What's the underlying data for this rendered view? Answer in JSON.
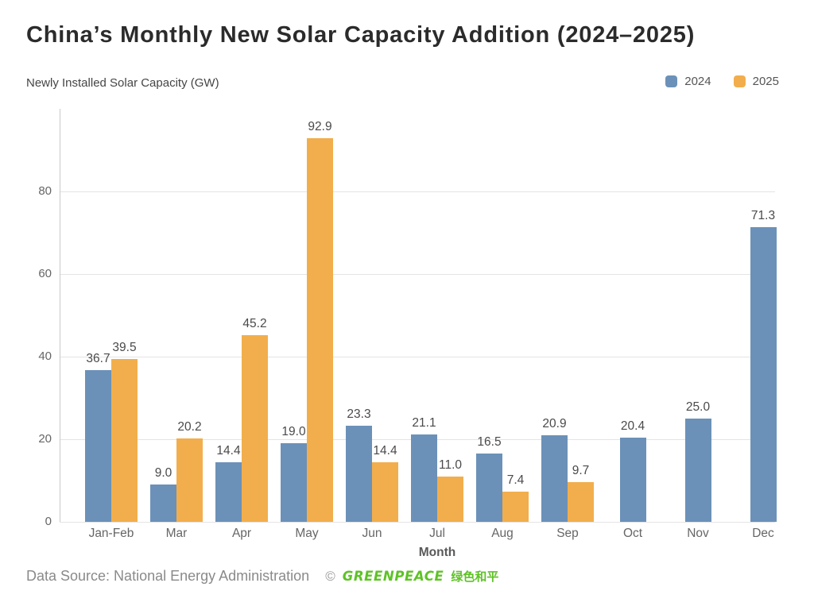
{
  "header": {
    "title": "China’s Monthly New Solar Capacity Addition (2024–2025)",
    "subtitle": "Newly Installed Solar Capacity (GW)"
  },
  "legend": [
    {
      "label": "2024",
      "color": "#6B91B8"
    },
    {
      "label": "2025",
      "color": "#F2AE4C"
    }
  ],
  "chart_data": {
    "type": "bar",
    "title": "China’s Monthly New Solar Capacity Addition (2024–2025)",
    "categories": [
      "Jan-Feb",
      "Mar",
      "Apr",
      "May",
      "Jun",
      "Jul",
      "Aug",
      "Sep",
      "Oct",
      "Nov",
      "Dec"
    ],
    "series": [
      {
        "name": "2024",
        "color": "#6B91B8",
        "values": [
          36.7,
          9.0,
          14.4,
          19.0,
          23.3,
          21.1,
          16.5,
          20.9,
          20.4,
          25.0,
          71.3
        ]
      },
      {
        "name": "2025",
        "color": "#F2AE4C",
        "values": [
          39.5,
          20.2,
          45.2,
          92.9,
          14.4,
          11.0,
          7.4,
          9.7,
          null,
          null,
          null
        ]
      }
    ],
    "xlabel": "Month",
    "ylabel": "Newly Installed Solar Capacity (GW)",
    "ylim": [
      0,
      100
    ],
    "yticks": [
      0,
      20,
      40,
      60,
      80
    ],
    "grid": true,
    "legend_position": "top-right",
    "value_labels": true,
    "value_label_format": "one-decimal"
  },
  "footer": {
    "source": "Data Source: National Energy Administration",
    "copyright": "©",
    "logo_text": "GREENPEACE",
    "logo_cn": "绿色和平",
    "logo_color": "#5EC226"
  }
}
